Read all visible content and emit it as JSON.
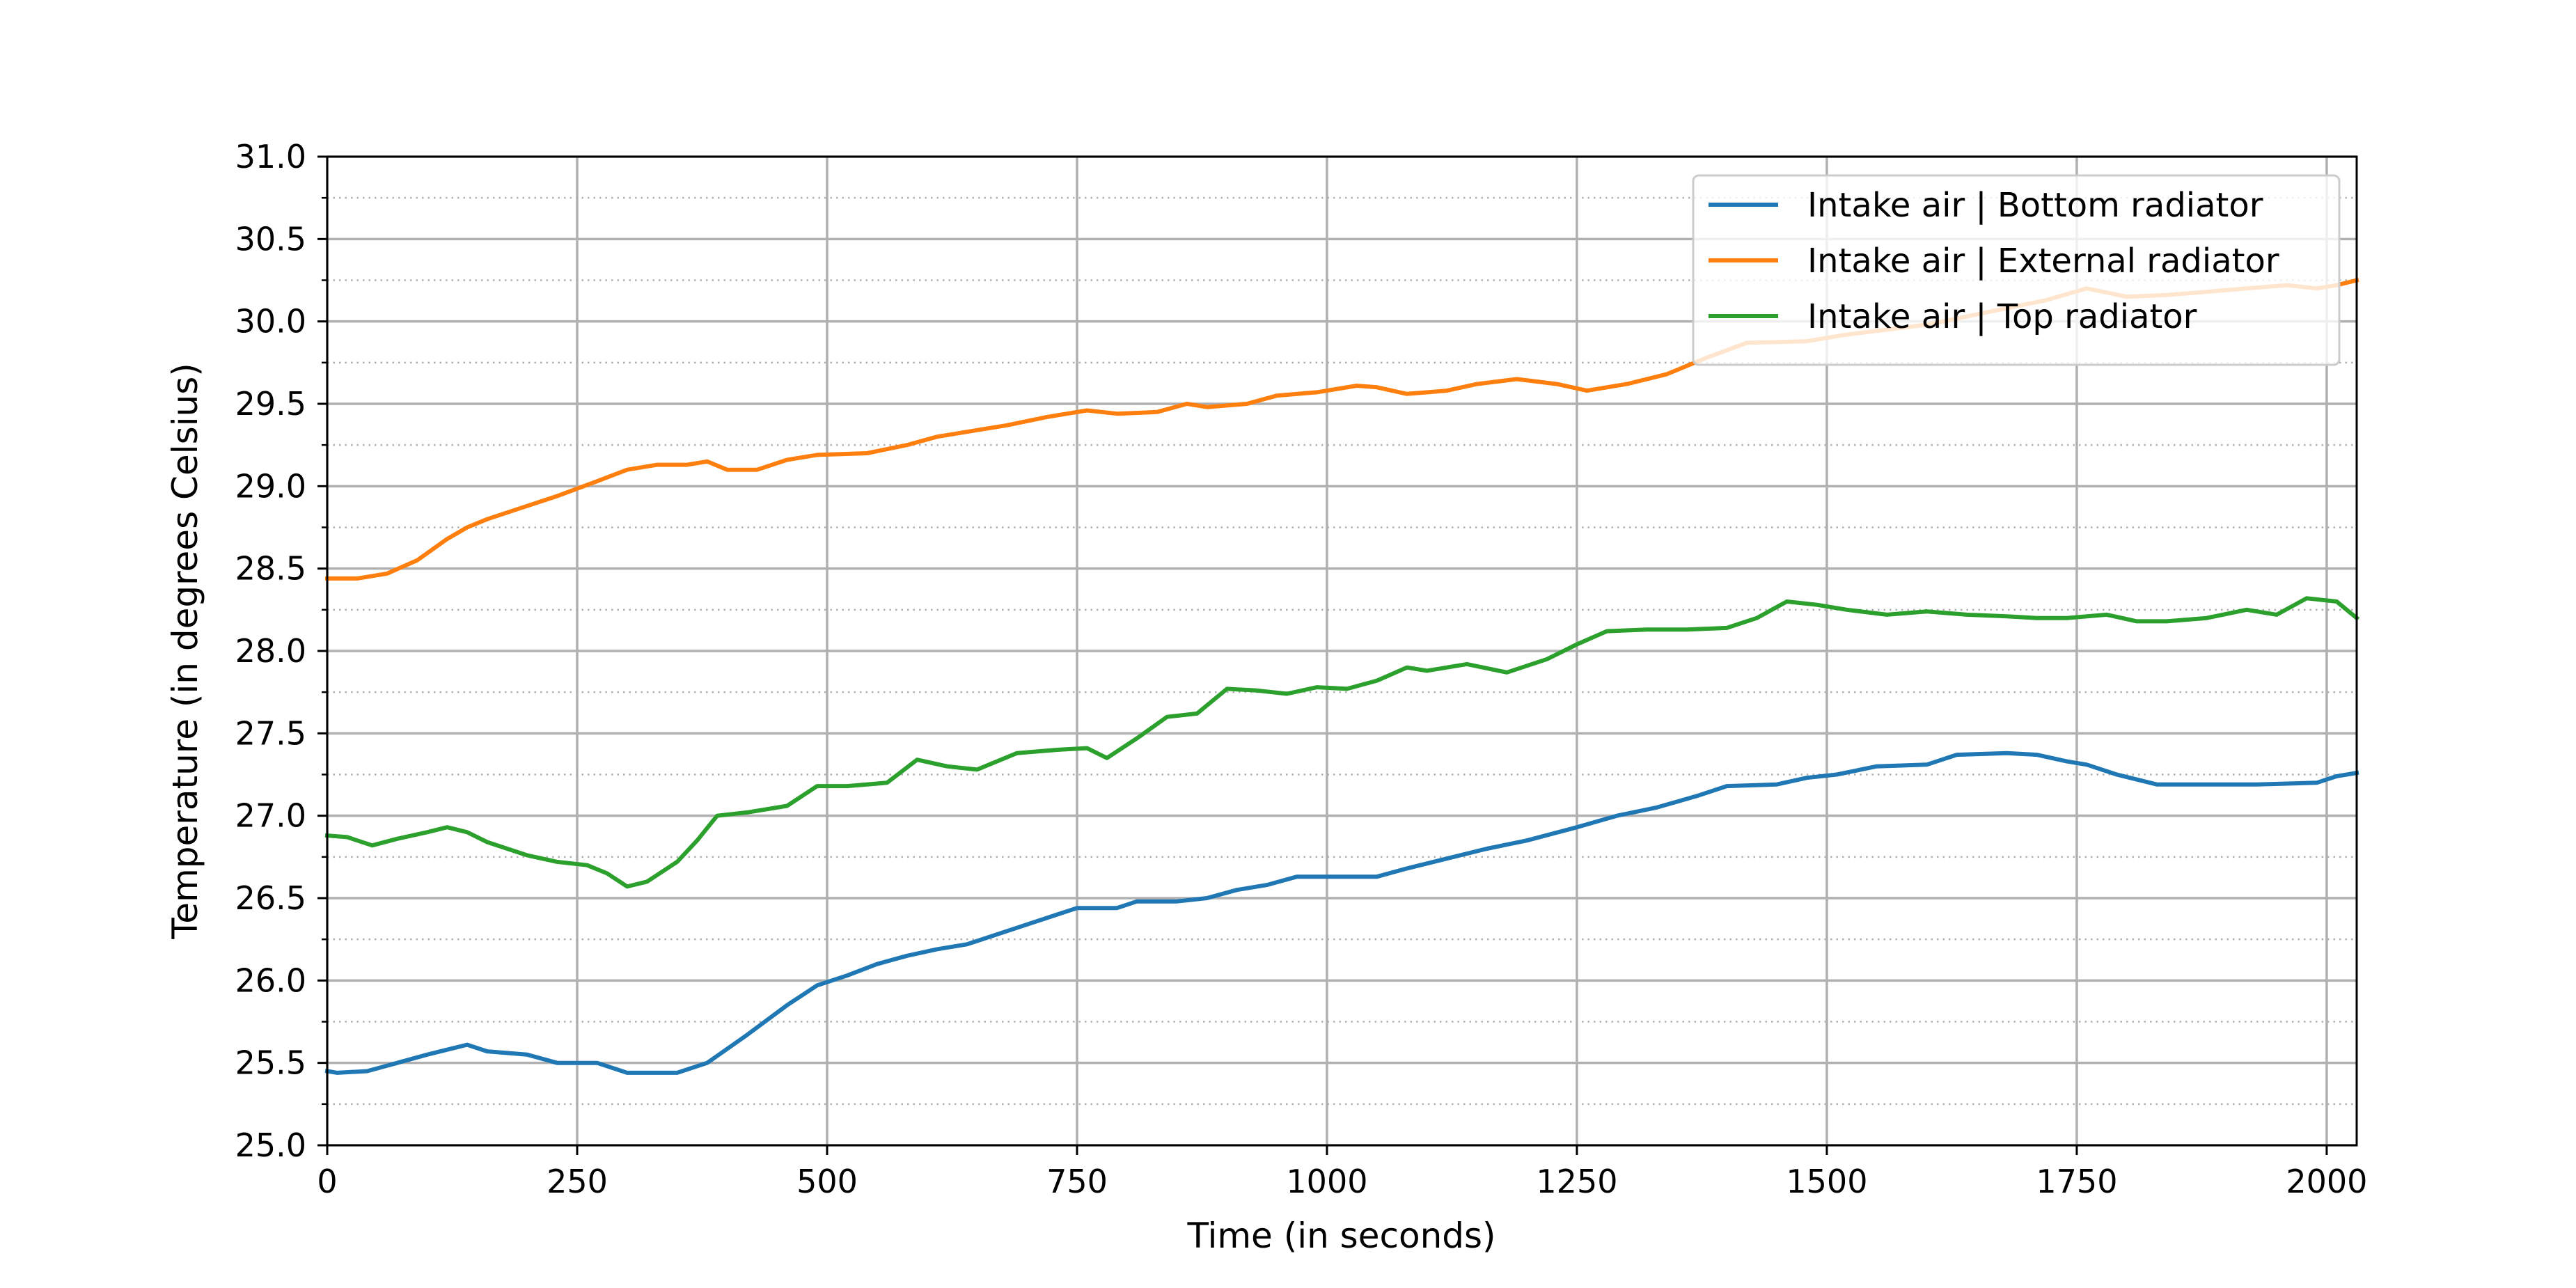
{
  "chart_data": {
    "type": "line",
    "title": "",
    "xlabel": "Time (in seconds)",
    "ylabel": "Temperature (in degrees Celsius)",
    "xlim": [
      0,
      2030
    ],
    "ylim": [
      25.0,
      31.0
    ],
    "xticks": [
      0,
      250,
      500,
      750,
      1000,
      1250,
      1500,
      1750,
      2000
    ],
    "xtick_labels": [
      "0",
      "250",
      "500",
      "750",
      "1000",
      "1250",
      "1500",
      "1750",
      "2000"
    ],
    "yticks": [
      25.0,
      25.5,
      26.0,
      26.5,
      27.0,
      27.5,
      28.0,
      28.5,
      29.0,
      29.5,
      30.0,
      30.5,
      31.0
    ],
    "ytick_labels": [
      "25.0",
      "25.5",
      "26.0",
      "26.5",
      "27.0",
      "27.5",
      "28.0",
      "28.5",
      "29.0",
      "29.5",
      "30.0",
      "30.5",
      "31.0"
    ],
    "minor_yticks": [
      25.25,
      25.75,
      26.25,
      26.75,
      27.25,
      27.75,
      28.25,
      28.75,
      29.25,
      29.75,
      30.25,
      30.75
    ],
    "grid": {
      "major": true,
      "minor_y_dotted": true
    },
    "legend_position": "top-right",
    "series": [
      {
        "name": "Intake air | Bottom radiator",
        "color": "#1f77b4",
        "x": [
          0,
          10,
          40,
          70,
          100,
          120,
          140,
          160,
          200,
          230,
          270,
          300,
          320,
          350,
          380,
          420,
          460,
          490,
          520,
          550,
          580,
          610,
          640,
          680,
          720,
          750,
          790,
          810,
          850,
          880,
          910,
          940,
          970,
          1000,
          1050,
          1080,
          1120,
          1160,
          1200,
          1250,
          1290,
          1330,
          1370,
          1400,
          1450,
          1480,
          1510,
          1550,
          1600,
          1630,
          1680,
          1710,
          1740,
          1760,
          1790,
          1830,
          1880,
          1930,
          1990,
          2010,
          2030
        ],
        "y": [
          25.45,
          25.44,
          25.45,
          25.5,
          25.55,
          25.58,
          25.61,
          25.57,
          25.55,
          25.5,
          25.5,
          25.44,
          25.44,
          25.44,
          25.5,
          25.67,
          25.85,
          25.97,
          26.03,
          26.1,
          26.15,
          26.19,
          26.22,
          26.3,
          26.38,
          26.44,
          26.44,
          26.48,
          26.48,
          26.5,
          26.55,
          26.58,
          26.63,
          26.63,
          26.63,
          26.68,
          26.74,
          26.8,
          26.85,
          26.93,
          27.0,
          27.05,
          27.12,
          27.18,
          27.19,
          27.23,
          27.25,
          27.3,
          27.31,
          27.37,
          27.38,
          27.37,
          27.33,
          27.31,
          27.25,
          27.19,
          27.19,
          27.19,
          27.2,
          27.24,
          27.26
        ]
      },
      {
        "name": "Intake air | External radiator",
        "color": "#ff7f0e",
        "x": [
          0,
          30,
          60,
          90,
          120,
          140,
          160,
          200,
          230,
          270,
          300,
          330,
          360,
          380,
          400,
          430,
          460,
          490,
          540,
          580,
          610,
          640,
          680,
          720,
          760,
          790,
          830,
          860,
          880,
          920,
          950,
          990,
          1030,
          1050,
          1080,
          1120,
          1150,
          1190,
          1230,
          1260,
          1300,
          1340,
          1380,
          1420,
          1480,
          1520,
          1560,
          1600,
          1640,
          1680,
          1720,
          1760,
          1800,
          1840,
          1880,
          1920,
          1960,
          1990,
          2010,
          2030
        ],
        "y": [
          28.44,
          28.44,
          28.47,
          28.55,
          28.68,
          28.75,
          28.8,
          28.88,
          28.94,
          29.03,
          29.1,
          29.13,
          29.13,
          29.15,
          29.1,
          29.1,
          29.16,
          29.19,
          29.2,
          29.25,
          29.3,
          29.33,
          29.37,
          29.42,
          29.46,
          29.44,
          29.45,
          29.5,
          29.48,
          29.5,
          29.55,
          29.57,
          29.61,
          29.6,
          29.56,
          29.58,
          29.62,
          29.65,
          29.62,
          29.58,
          29.62,
          29.68,
          29.78,
          29.87,
          29.88,
          29.92,
          29.95,
          29.98,
          30.03,
          30.08,
          30.13,
          30.2,
          30.15,
          30.16,
          30.18,
          30.2,
          30.22,
          30.2,
          30.22,
          30.25
        ]
      },
      {
        "name": "Intake air | Top radiator",
        "color": "#2ca02c",
        "x": [
          0,
          20,
          45,
          70,
          100,
          120,
          140,
          160,
          180,
          200,
          230,
          260,
          280,
          300,
          320,
          350,
          370,
          390,
          420,
          460,
          490,
          520,
          560,
          590,
          620,
          650,
          690,
          730,
          760,
          780,
          810,
          840,
          870,
          900,
          930,
          960,
          990,
          1020,
          1050,
          1080,
          1100,
          1140,
          1180,
          1220,
          1250,
          1280,
          1320,
          1360,
          1400,
          1430,
          1460,
          1490,
          1520,
          1560,
          1600,
          1640,
          1680,
          1710,
          1740,
          1780,
          1810,
          1840,
          1880,
          1920,
          1950,
          1980,
          2010,
          2030
        ],
        "y": [
          26.88,
          26.87,
          26.82,
          26.86,
          26.9,
          26.93,
          26.9,
          26.84,
          26.8,
          26.76,
          26.72,
          26.7,
          26.65,
          26.57,
          26.6,
          26.72,
          26.85,
          27.0,
          27.02,
          27.06,
          27.18,
          27.18,
          27.2,
          27.34,
          27.3,
          27.28,
          27.38,
          27.4,
          27.41,
          27.35,
          27.47,
          27.6,
          27.62,
          27.77,
          27.76,
          27.74,
          27.78,
          27.77,
          27.82,
          27.9,
          27.88,
          27.92,
          27.87,
          27.95,
          28.04,
          28.12,
          28.13,
          28.13,
          28.14,
          28.2,
          28.3,
          28.28,
          28.25,
          28.22,
          28.24,
          28.22,
          28.21,
          28.2,
          28.2,
          28.22,
          28.18,
          28.18,
          28.2,
          28.25,
          28.22,
          28.32,
          28.3,
          28.2
        ]
      }
    ]
  }
}
